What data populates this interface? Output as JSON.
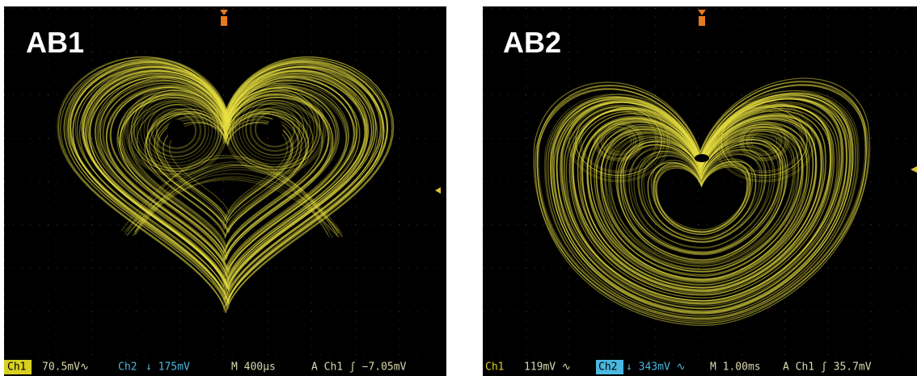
{
  "panels": [
    {
      "label": "AB1",
      "status": {
        "ch1": "Ch1",
        "ch1_scale": "70.5mV∿",
        "ch2": "Ch2",
        "ch2_scale": "↓ 175mV",
        "timebase": "M 400µs",
        "trigger": "A  Ch1  ʃ −7.05mV"
      }
    },
    {
      "label": "AB2",
      "status": {
        "ch1": "Ch1",
        "ch1_scale": "119mV ∿",
        "ch2": "Ch2",
        "ch2_scale": "↓ 343mV ∿",
        "timebase": "M 1.00ms",
        "trigger": "A  Ch1  ʃ  35.7mV"
      }
    }
  ]
}
